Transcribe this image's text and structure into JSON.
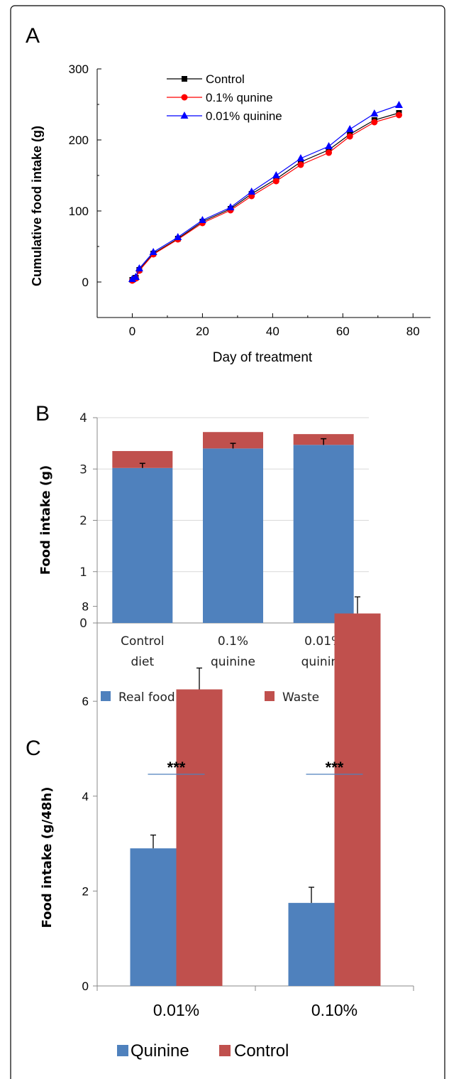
{
  "panels": {
    "a": {
      "letter": "A"
    },
    "b": {
      "letter": "B"
    },
    "c": {
      "letter": "C"
    }
  },
  "chart_data": [
    {
      "type": "line",
      "panel": "A",
      "xlabel": "Day of treatment",
      "ylabel": "Cumulative food intake (g)",
      "xlim": [
        -10,
        85
      ],
      "ylim": [
        -50,
        300
      ],
      "xticks": [
        0,
        20,
        40,
        60,
        80
      ],
      "yticks": [
        0,
        100,
        200,
        300
      ],
      "legend_position": "top-left",
      "x": [
        0,
        1,
        2,
        6,
        13,
        20,
        28,
        34,
        41,
        48,
        56,
        62,
        69,
        76
      ],
      "series": [
        {
          "name": "Control",
          "color": "#000000",
          "marker": "square",
          "values": [
            3,
            6,
            17,
            40,
            61,
            85,
            103,
            124,
            145,
            169,
            186,
            208,
            228,
            238
          ]
        },
        {
          "name": "0.1% qunine",
          "color": "#ff0000",
          "marker": "circle",
          "values": [
            2,
            5,
            16,
            39,
            60,
            83,
            101,
            121,
            142,
            165,
            182,
            205,
            225,
            235
          ]
        },
        {
          "name": "0.01% quinine",
          "color": "#0000ff",
          "marker": "triangle",
          "values": [
            4,
            7,
            19,
            42,
            63,
            87,
            105,
            127,
            150,
            174,
            191,
            215,
            237,
            249
          ]
        }
      ]
    },
    {
      "type": "bar",
      "stacked": true,
      "panel": "B",
      "ylabel": "Food intake (g)",
      "ylim": [
        0,
        4
      ],
      "yticks": [
        0,
        1,
        2,
        3,
        4
      ],
      "grid": true,
      "legend_position": "bottom",
      "categories": [
        [
          "Control",
          "diet"
        ],
        [
          "0.1%",
          "quinine"
        ],
        [
          "0.01%",
          "quinine"
        ]
      ],
      "series": [
        {
          "name": "Real food intake",
          "color": "#4f81bd",
          "values": [
            3.02,
            3.4,
            3.47
          ]
        },
        {
          "name": "Waste",
          "color": "#c0504d",
          "values": [
            0.33,
            0.32,
            0.21
          ]
        }
      ],
      "error_bars": [
        0.09,
        0.1,
        0.12
      ]
    },
    {
      "type": "bar",
      "panel": "C",
      "ylabel": "Food intake (g/48h)",
      "ylim": [
        0,
        9
      ],
      "yticks": [
        0,
        2,
        4,
        6,
        8
      ],
      "legend_position": "bottom",
      "categories": [
        "0.01%",
        "0.10%"
      ],
      "series": [
        {
          "name": "Quinine",
          "color": "#4f81bd",
          "values": [
            2.9,
            1.75
          ],
          "errors": [
            0.28,
            0.33
          ]
        },
        {
          "name": "Control",
          "color": "#c0504d",
          "values": [
            6.25,
            7.85
          ],
          "errors": [
            0.45,
            0.35
          ]
        }
      ],
      "annotations": [
        "***",
        "***"
      ]
    }
  ]
}
